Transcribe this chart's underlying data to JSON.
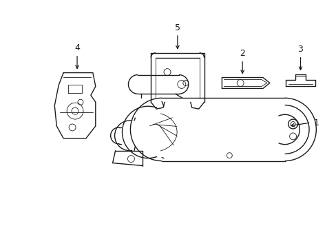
{
  "bg_color": "#ffffff",
  "line_color": "#1a1a1a",
  "figsize": [
    4.89,
    3.6
  ],
  "dpi": 100,
  "lw": 1.0,
  "tlw": 0.6
}
